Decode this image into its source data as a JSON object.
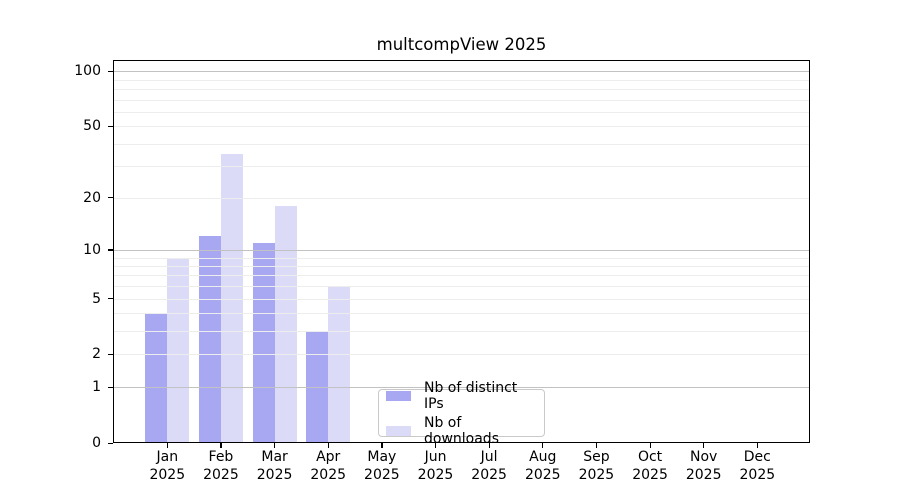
{
  "chart_data": {
    "type": "bar",
    "title": "multcompView 2025",
    "categories": [
      "Jan",
      "Feb",
      "Mar",
      "Apr",
      "May",
      "Jun",
      "Jul",
      "Aug",
      "Sep",
      "Oct",
      "Nov",
      "Dec"
    ],
    "year_label": "2025",
    "series": [
      {
        "name": "Nb of distinct IPs",
        "color": "#a7a7f2",
        "values": [
          4,
          12,
          11,
          3,
          0,
          0,
          0,
          0,
          0,
          0,
          0,
          0
        ]
      },
      {
        "name": "Nb of downloads",
        "color": "#dbdbf7",
        "values": [
          9,
          35,
          18,
          6,
          0,
          0,
          0,
          0,
          0,
          0,
          0,
          0
        ]
      }
    ],
    "yticks": [
      0,
      1,
      2,
      5,
      10,
      20,
      50,
      100
    ],
    "minor_gridlines": [
      2,
      3,
      4,
      5,
      6,
      7,
      8,
      9,
      20,
      30,
      40,
      50,
      60,
      70,
      80,
      90
    ],
    "major_gridlines": [
      1,
      10,
      100
    ],
    "scale": "log10(x+1)",
    "ylim": [
      0,
      115
    ],
    "grid": "on",
    "legend_position": "lower center",
    "xlabel": "",
    "ylabel": ""
  },
  "colors": {
    "bar_distinct_ips": "#a7a7f2",
    "bar_downloads": "#dbdbf7",
    "grid_minor": "#ededed",
    "grid_major": "#c2c2c2",
    "frame": "#000000",
    "text": "#000000",
    "legend_border": "#c9c9c9",
    "background": "#ffffff"
  }
}
